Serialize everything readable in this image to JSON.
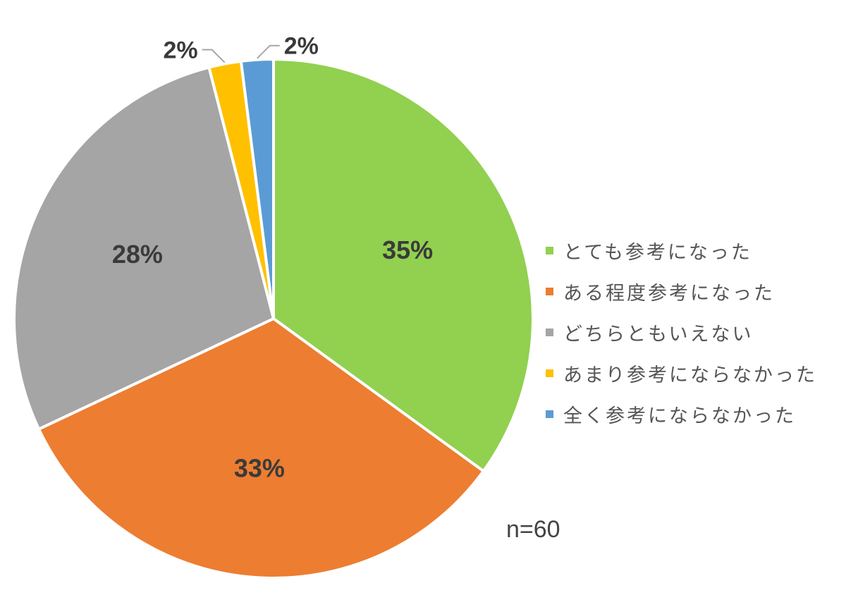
{
  "chart_data": {
    "type": "pie",
    "title": "",
    "categories": [
      "とても参考になった",
      "ある程度参考になった",
      "どちらともいえない",
      "あまり参考にならなかった",
      "全く参考にならなかった"
    ],
    "values": [
      35,
      33,
      28,
      2,
      2
    ],
    "labels": [
      "35%",
      "33%",
      "28%",
      "2%",
      "2%"
    ],
    "colors": [
      "#92D050",
      "#ED7D31",
      "#A5A5A5",
      "#FFC000",
      "#5B9BD5"
    ],
    "legend_position": "right",
    "start_angle": "12 o'clock, clockwise"
  },
  "note": "n=60"
}
